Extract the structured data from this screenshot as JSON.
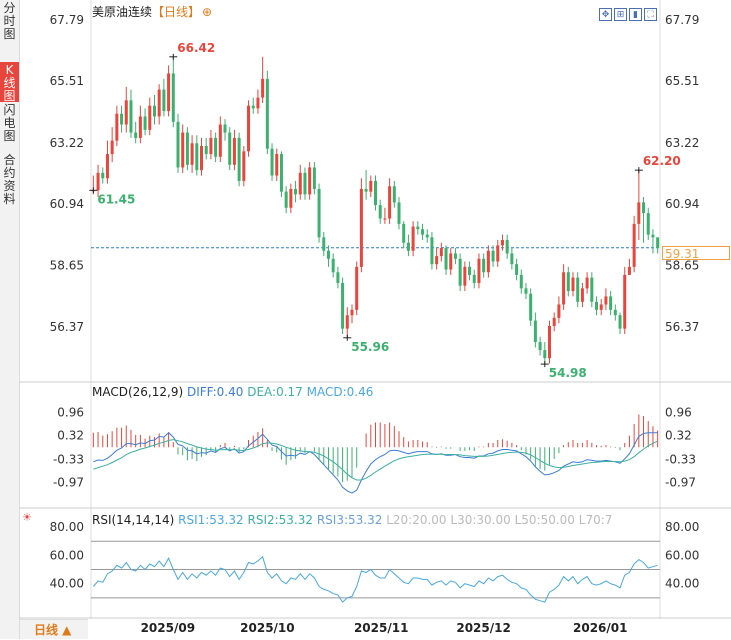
{
  "sidebar": {
    "tabs": [
      {
        "label": "分时图",
        "active": false
      },
      {
        "label": "K线图",
        "active": true
      },
      {
        "label": "闪电图",
        "active": false
      },
      {
        "label": "合约资料",
        "active": false
      }
    ]
  },
  "header": {
    "title": "美原油连续",
    "period": "【日线】",
    "add_icon": "⊕"
  },
  "toolbar": {
    "icons": [
      "expand-icon",
      "fit-icon",
      "marker-icon",
      "fullscreen-icon"
    ]
  },
  "period_selector": {
    "label": "日线 ▲"
  },
  "last_price": "59.31",
  "colors": {
    "up": "#e8453c",
    "down": "#3cb06e",
    "diff": "#3b7dd8",
    "dea": "#3cb0a0",
    "rsi": "#4aa8e0",
    "price_line": "#2a7fd0"
  },
  "chart_data": [
    {
      "type": "candlestick",
      "y_ticks": [
        "67.79",
        "65.51",
        "63.22",
        "60.94",
        "58.65",
        "56.37"
      ],
      "ylim": [
        54.5,
        67.79
      ],
      "x_ticks": [
        "2025/09",
        "2025/10",
        "2025/11",
        "2025/12",
        "2026/01"
      ],
      "annotations": {
        "high1": "66.42",
        "low1": "61.45",
        "low2": "55.96",
        "low3": "54.98",
        "high2": "62.20"
      },
      "reference_price": 59.31,
      "closes": [
        61.45,
        62.1,
        61.9,
        62.8,
        63.3,
        64.3,
        63.9,
        64.8,
        63.6,
        63.4,
        64.2,
        63.7,
        64.6,
        64.2,
        65.2,
        64.4,
        65.8,
        64.0,
        62.3,
        63.6,
        62.4,
        63.2,
        62.2,
        63.1,
        62.8,
        63.4,
        62.7,
        63.9,
        63.6,
        62.4,
        63.4,
        61.8,
        62.9,
        64.6,
        64.5,
        64.9,
        65.6,
        63.0,
        62.0,
        62.8,
        61.4,
        60.8,
        61.5,
        61.3,
        62.1,
        61.3,
        62.3,
        61.5,
        59.7,
        59.2,
        58.9,
        58.4,
        58.0,
        56.3,
        56.8,
        57.0,
        58.6,
        61.5,
        61.4,
        61.8,
        60.9,
        60.4,
        60.4,
        61.6,
        61.0,
        60.2,
        59.5,
        59.2,
        60.1,
        60.0,
        59.8,
        59.7,
        58.7,
        59.0,
        59.3,
        58.5,
        59.1,
        58.9,
        57.9,
        58.6,
        58.3,
        58.0,
        58.9,
        58.4,
        59.2,
        58.8,
        59.4,
        59.6,
        59.1,
        58.7,
        58.3,
        57.8,
        57.6,
        56.6,
        55.8,
        55.5,
        55.2,
        56.4,
        56.7,
        57.2,
        58.4,
        57.7,
        58.2,
        57.3,
        57.8,
        58.2,
        57.3,
        57.0,
        57.2,
        57.5,
        57.0,
        56.8,
        56.3,
        58.3,
        58.6,
        60.2,
        61.0,
        60.6,
        59.8,
        59.7,
        59.3
      ],
      "opens": [
        61.45,
        61.45,
        62.1,
        61.9,
        62.8,
        63.3,
        64.3,
        63.9,
        64.8,
        63.6,
        63.4,
        64.2,
        63.7,
        64.6,
        64.2,
        65.2,
        64.4,
        65.8,
        64.0,
        62.3,
        63.6,
        62.4,
        63.2,
        62.2,
        63.1,
        62.8,
        63.4,
        62.7,
        63.9,
        63.6,
        62.4,
        63.4,
        61.8,
        62.9,
        64.6,
        64.5,
        64.9,
        65.6,
        63.0,
        62.0,
        62.8,
        61.4,
        60.8,
        61.5,
        61.3,
        62.1,
        61.3,
        62.3,
        61.5,
        59.7,
        59.2,
        58.9,
        58.4,
        58.0,
        56.3,
        56.8,
        57.0,
        58.6,
        61.5,
        61.4,
        61.8,
        60.9,
        60.4,
        60.4,
        61.6,
        61.0,
        60.2,
        59.5,
        59.2,
        60.1,
        60.0,
        59.8,
        59.7,
        58.7,
        59.0,
        59.3,
        58.5,
        59.1,
        58.9,
        57.9,
        58.6,
        58.3,
        58.0,
        58.9,
        58.4,
        59.2,
        58.8,
        59.4,
        59.6,
        59.1,
        58.7,
        58.3,
        57.8,
        57.6,
        56.6,
        55.8,
        55.5,
        55.2,
        56.4,
        56.7,
        57.2,
        58.4,
        57.7,
        58.2,
        57.3,
        57.8,
        58.2,
        57.3,
        57.0,
        57.2,
        57.5,
        57.0,
        56.8,
        56.3,
        58.3,
        58.6,
        60.2,
        61.0,
        60.6,
        59.8,
        59.7
      ],
      "highs": [
        62.0,
        62.4,
        62.3,
        63.3,
        63.8,
        64.6,
        64.6,
        65.3,
        65.2,
        64.0,
        64.6,
        64.5,
        64.9,
        65.0,
        65.4,
        65.6,
        66.1,
        66.42,
        64.3,
        63.9,
        63.8,
        63.5,
        63.5,
        63.4,
        63.4,
        63.7,
        63.6,
        64.2,
        64.1,
        63.8,
        63.7,
        63.6,
        63.1,
        64.8,
        64.9,
        65.2,
        66.42,
        65.9,
        63.2,
        63.0,
        62.9,
        61.6,
        61.7,
        61.8,
        62.4,
        62.3,
        62.5,
        62.5,
        61.7,
        59.9,
        59.4,
        59.1,
        58.6,
        58.2,
        57.1,
        57.2,
        58.8,
        61.9,
        62.2,
        62.0,
        62.0,
        61.1,
        60.8,
        61.9,
        61.8,
        61.2,
        60.3,
        59.8,
        60.3,
        60.3,
        60.2,
        60.0,
        59.9,
        59.3,
        59.5,
        59.4,
        59.3,
        59.3,
        59.1,
        58.8,
        58.8,
        58.5,
        59.1,
        59.1,
        59.4,
        59.4,
        59.6,
        59.8,
        59.8,
        59.3,
        58.9,
        58.5,
        58.0,
        57.8,
        56.9,
        56.0,
        55.8,
        56.6,
        56.9,
        57.5,
        58.7,
        58.6,
        58.4,
        58.4,
        58.0,
        58.4,
        58.4,
        57.5,
        57.4,
        57.8,
        57.7,
        57.2,
        56.9,
        58.6,
        58.9,
        60.5,
        62.2,
        61.2,
        60.8,
        60.0,
        59.7
      ],
      "lows": [
        61.3,
        61.2,
        61.7,
        61.7,
        62.5,
        63.1,
        63.6,
        63.6,
        63.4,
        63.2,
        63.2,
        63.5,
        63.5,
        63.9,
        63.9,
        64.2,
        64.2,
        63.8,
        62.1,
        62.1,
        62.2,
        62.1,
        62.0,
        62.0,
        62.6,
        62.6,
        62.5,
        62.5,
        63.3,
        62.2,
        62.2,
        61.6,
        61.6,
        62.7,
        64.3,
        64.3,
        64.7,
        62.8,
        61.8,
        61.8,
        61.2,
        60.6,
        60.6,
        61.0,
        61.1,
        61.1,
        61.1,
        61.3,
        59.5,
        59.0,
        58.6,
        58.2,
        57.8,
        56.1,
        55.96,
        56.5,
        56.8,
        58.4,
        61.1,
        61.2,
        60.7,
        60.2,
        60.2,
        60.2,
        60.8,
        60.0,
        59.3,
        59.0,
        59.0,
        59.8,
        59.6,
        59.5,
        58.5,
        58.5,
        58.8,
        58.3,
        58.3,
        58.7,
        57.7,
        57.7,
        58.1,
        57.8,
        57.8,
        58.2,
        58.2,
        58.6,
        58.6,
        59.2,
        58.9,
        58.5,
        58.1,
        57.6,
        57.4,
        56.4,
        55.6,
        55.3,
        54.98,
        55.0,
        56.2,
        56.5,
        57.0,
        57.5,
        57.5,
        57.1,
        57.1,
        57.6,
        57.1,
        56.8,
        56.8,
        57.0,
        56.8,
        56.6,
        56.1,
        56.1,
        58.4,
        58.4,
        59.6,
        59.5,
        59.6,
        59.1,
        59.1
      ],
      "series": [
        {
          "name": "DIFF"
        },
        {
          "name": "DEA"
        },
        {
          "name": "MACD"
        }
      ]
    },
    {
      "type": "macd",
      "label": "MACD(26,12,9)",
      "diff_label": "DIFF:0.40",
      "dea_label": "DEA:0.17",
      "macd_label": "MACD:0.46",
      "y_ticks": [
        "0.96",
        "0.32",
        "-0.33",
        "-0.97"
      ],
      "ylim": [
        -1.45,
        1.3
      ],
      "diff": [
        -0.4,
        -0.35,
        -0.36,
        -0.3,
        -0.2,
        -0.08,
        -0.02,
        0.1,
        0.1,
        0.07,
        0.12,
        0.1,
        0.18,
        0.2,
        0.3,
        0.28,
        0.4,
        0.28,
        0.08,
        0.04,
        -0.08,
        -0.1,
        -0.18,
        -0.15,
        -0.16,
        -0.1,
        -0.14,
        -0.04,
        0.0,
        -0.1,
        -0.04,
        -0.16,
        -0.12,
        0.04,
        0.14,
        0.24,
        0.36,
        0.22,
        0.06,
        0.02,
        -0.12,
        -0.24,
        -0.22,
        -0.24,
        -0.16,
        -0.2,
        -0.12,
        -0.2,
        -0.34,
        -0.48,
        -0.62,
        -0.76,
        -0.9,
        -1.1,
        -1.2,
        -1.26,
        -1.18,
        -0.9,
        -0.66,
        -0.46,
        -0.34,
        -0.26,
        -0.2,
        -0.1,
        -0.08,
        -0.1,
        -0.14,
        -0.18,
        -0.14,
        -0.12,
        -0.12,
        -0.12,
        -0.18,
        -0.2,
        -0.18,
        -0.22,
        -0.22,
        -0.2,
        -0.26,
        -0.28,
        -0.28,
        -0.3,
        -0.24,
        -0.24,
        -0.18,
        -0.16,
        -0.1,
        -0.06,
        -0.06,
        -0.08,
        -0.1,
        -0.18,
        -0.26,
        -0.38,
        -0.54,
        -0.66,
        -0.76,
        -0.74,
        -0.7,
        -0.64,
        -0.52,
        -0.46,
        -0.4,
        -0.42,
        -0.4,
        -0.34,
        -0.36,
        -0.38,
        -0.38,
        -0.36,
        -0.38,
        -0.4,
        -0.44,
        -0.32,
        -0.18,
        0.06,
        0.3,
        0.38,
        0.4,
        0.4,
        0.4
      ],
      "dea": [
        -0.6,
        -0.56,
        -0.52,
        -0.48,
        -0.42,
        -0.35,
        -0.29,
        -0.2,
        -0.14,
        -0.1,
        -0.05,
        -0.02,
        0.02,
        0.06,
        0.11,
        0.14,
        0.19,
        0.21,
        0.18,
        0.15,
        0.1,
        0.06,
        0.01,
        -0.02,
        -0.05,
        -0.06,
        -0.08,
        -0.07,
        -0.06,
        -0.07,
        -0.06,
        -0.08,
        -0.09,
        -0.06,
        -0.02,
        0.03,
        0.1,
        0.12,
        0.11,
        0.09,
        0.05,
        0.0,
        -0.04,
        -0.08,
        -0.1,
        -0.12,
        -0.12,
        -0.14,
        -0.18,
        -0.24,
        -0.32,
        -0.4,
        -0.5,
        -0.62,
        -0.74,
        -0.84,
        -0.9,
        -0.9,
        -0.85,
        -0.77,
        -0.68,
        -0.6,
        -0.52,
        -0.44,
        -0.37,
        -0.32,
        -0.28,
        -0.26,
        -0.24,
        -0.22,
        -0.2,
        -0.19,
        -0.19,
        -0.19,
        -0.19,
        -0.2,
        -0.2,
        -0.2,
        -0.21,
        -0.23,
        -0.24,
        -0.25,
        -0.25,
        -0.25,
        -0.24,
        -0.22,
        -0.2,
        -0.17,
        -0.15,
        -0.14,
        -0.13,
        -0.14,
        -0.16,
        -0.21,
        -0.28,
        -0.36,
        -0.44,
        -0.5,
        -0.54,
        -0.56,
        -0.55,
        -0.53,
        -0.5,
        -0.48,
        -0.46,
        -0.44,
        -0.42,
        -0.41,
        -0.4,
        -0.39,
        -0.39,
        -0.39,
        -0.4,
        -0.38,
        -0.34,
        -0.26,
        -0.15,
        -0.05,
        0.04,
        0.11,
        0.17
      ]
    },
    {
      "type": "line",
      "label": "RSI(14,14,14)",
      "rsi_labels": [
        "RSI1:53.32",
        "RSI2:53.32",
        "RSI3:53.32"
      ],
      "level_labels": [
        "L20:20.00",
        "L30:30.00",
        "L50:50.00",
        "L70:7"
      ],
      "y_ticks": [
        "80.00",
        "60.00",
        "40.00"
      ],
      "ylim": [
        20,
        85
      ],
      "levels": [
        70,
        50,
        30
      ],
      "values": [
        38,
        42,
        41,
        47,
        49,
        53,
        51,
        55,
        50,
        49,
        53,
        50,
        54,
        52,
        56,
        52,
        58,
        50,
        43,
        48,
        43,
        47,
        44,
        48,
        46,
        49,
        46,
        51,
        50,
        45,
        49,
        43,
        48,
        55,
        54,
        56,
        59,
        48,
        44,
        47,
        42,
        40,
        44,
        43,
        47,
        43,
        47,
        44,
        38,
        36,
        35,
        33,
        32,
        27,
        30,
        31,
        38,
        49,
        48,
        50,
        46,
        44,
        44,
        50,
        47,
        44,
        41,
        40,
        44,
        44,
        43,
        43,
        39,
        41,
        42,
        39,
        42,
        41,
        37,
        40,
        39,
        38,
        42,
        40,
        44,
        42,
        45,
        46,
        43,
        41,
        40,
        37,
        36,
        32,
        29,
        28,
        27,
        34,
        36,
        39,
        45,
        42,
        45,
        40,
        43,
        45,
        40,
        39,
        40,
        42,
        40,
        39,
        37,
        46,
        48,
        54,
        57,
        55,
        51,
        52,
        53
      ]
    }
  ]
}
